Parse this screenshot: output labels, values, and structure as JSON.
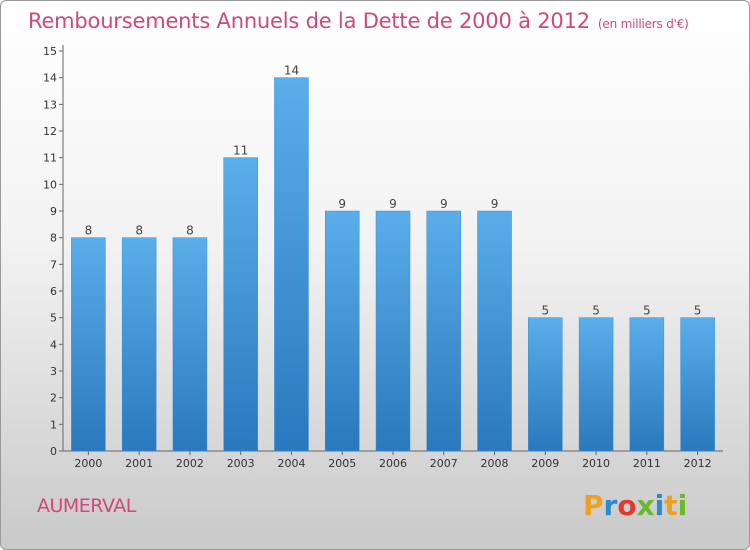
{
  "page": {
    "title": "Remboursements Annuels de la Dette de 2000 à 2012",
    "unit_note": "(en milliers d'€)",
    "place": "AUMERVAL",
    "logo": {
      "letters": [
        "P",
        "r",
        "o",
        "x",
        "i",
        "t",
        "i"
      ],
      "colors": [
        "#f0a020",
        "#2a8ad0",
        "#e03a2a",
        "#6bb82a",
        "#2a8ad0",
        "#f0a020",
        "#6bb82a"
      ]
    }
  },
  "chart_data": {
    "type": "bar",
    "categories": [
      "2000",
      "2001",
      "2002",
      "2003",
      "2004",
      "2005",
      "2006",
      "2007",
      "2008",
      "2009",
      "2010",
      "2011",
      "2012"
    ],
    "values": [
      8,
      8,
      8,
      11,
      14,
      9,
      9,
      9,
      9,
      5,
      5,
      5,
      5
    ],
    "ylim": [
      0,
      15
    ],
    "yticks": [
      0,
      1,
      2,
      3,
      4,
      5,
      6,
      7,
      8,
      9,
      10,
      11,
      12,
      13,
      14,
      15
    ],
    "data_labels": true,
    "grid": false,
    "bar_color": "#4a9fe0"
  }
}
